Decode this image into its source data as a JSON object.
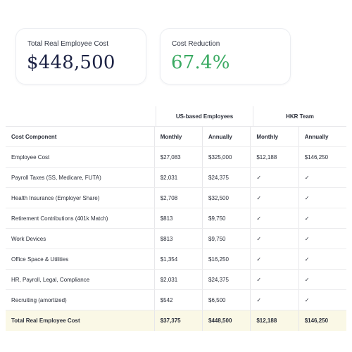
{
  "stats": [
    {
      "label": "Total Real Employee Cost",
      "value": "$448,500"
    },
    {
      "label": "Cost Reduction",
      "value": "67.4%"
    }
  ],
  "colors": {
    "cost_value": "#1c2244",
    "reduction_value": "#3aaa62",
    "total_row_bg": "#faf8e6"
  },
  "table": {
    "groups": [
      "US-based Employees",
      "HKR Team"
    ],
    "headers": [
      "Cost Component",
      "Monthly",
      "Annually",
      "Monthly",
      "Annually"
    ],
    "check_icon": "checkmark-icon",
    "rows": [
      [
        "Employee Cost",
        "$27,083",
        "$325,000",
        "$12,188",
        "$146,250"
      ],
      [
        "Payroll Taxes (SS, Medicare, FUTA)",
        "$2,031",
        "$24,375",
        "✓",
        "✓"
      ],
      [
        "Health Insurance (Employer Share)",
        "$2,708",
        "$32,500",
        "✓",
        "✓"
      ],
      [
        "Retirement Contributions (401k Match)",
        "$813",
        "$9,750",
        "✓",
        "✓"
      ],
      [
        "Work Devices",
        "$813",
        "$9,750",
        "✓",
        "✓"
      ],
      [
        "Office Space & Utilities",
        "$1,354",
        "$16,250",
        "✓",
        "✓"
      ],
      [
        "HR, Payroll, Legal, Compliance",
        "$2,031",
        "$24,375",
        "✓",
        "✓"
      ],
      [
        "Recruiting (amortized)",
        "$542",
        "$6,500",
        "✓",
        "✓"
      ]
    ],
    "total": [
      "Total Real Employee Cost",
      "$37,375",
      "$448,500",
      "$12,188",
      "$146,250"
    ]
  }
}
